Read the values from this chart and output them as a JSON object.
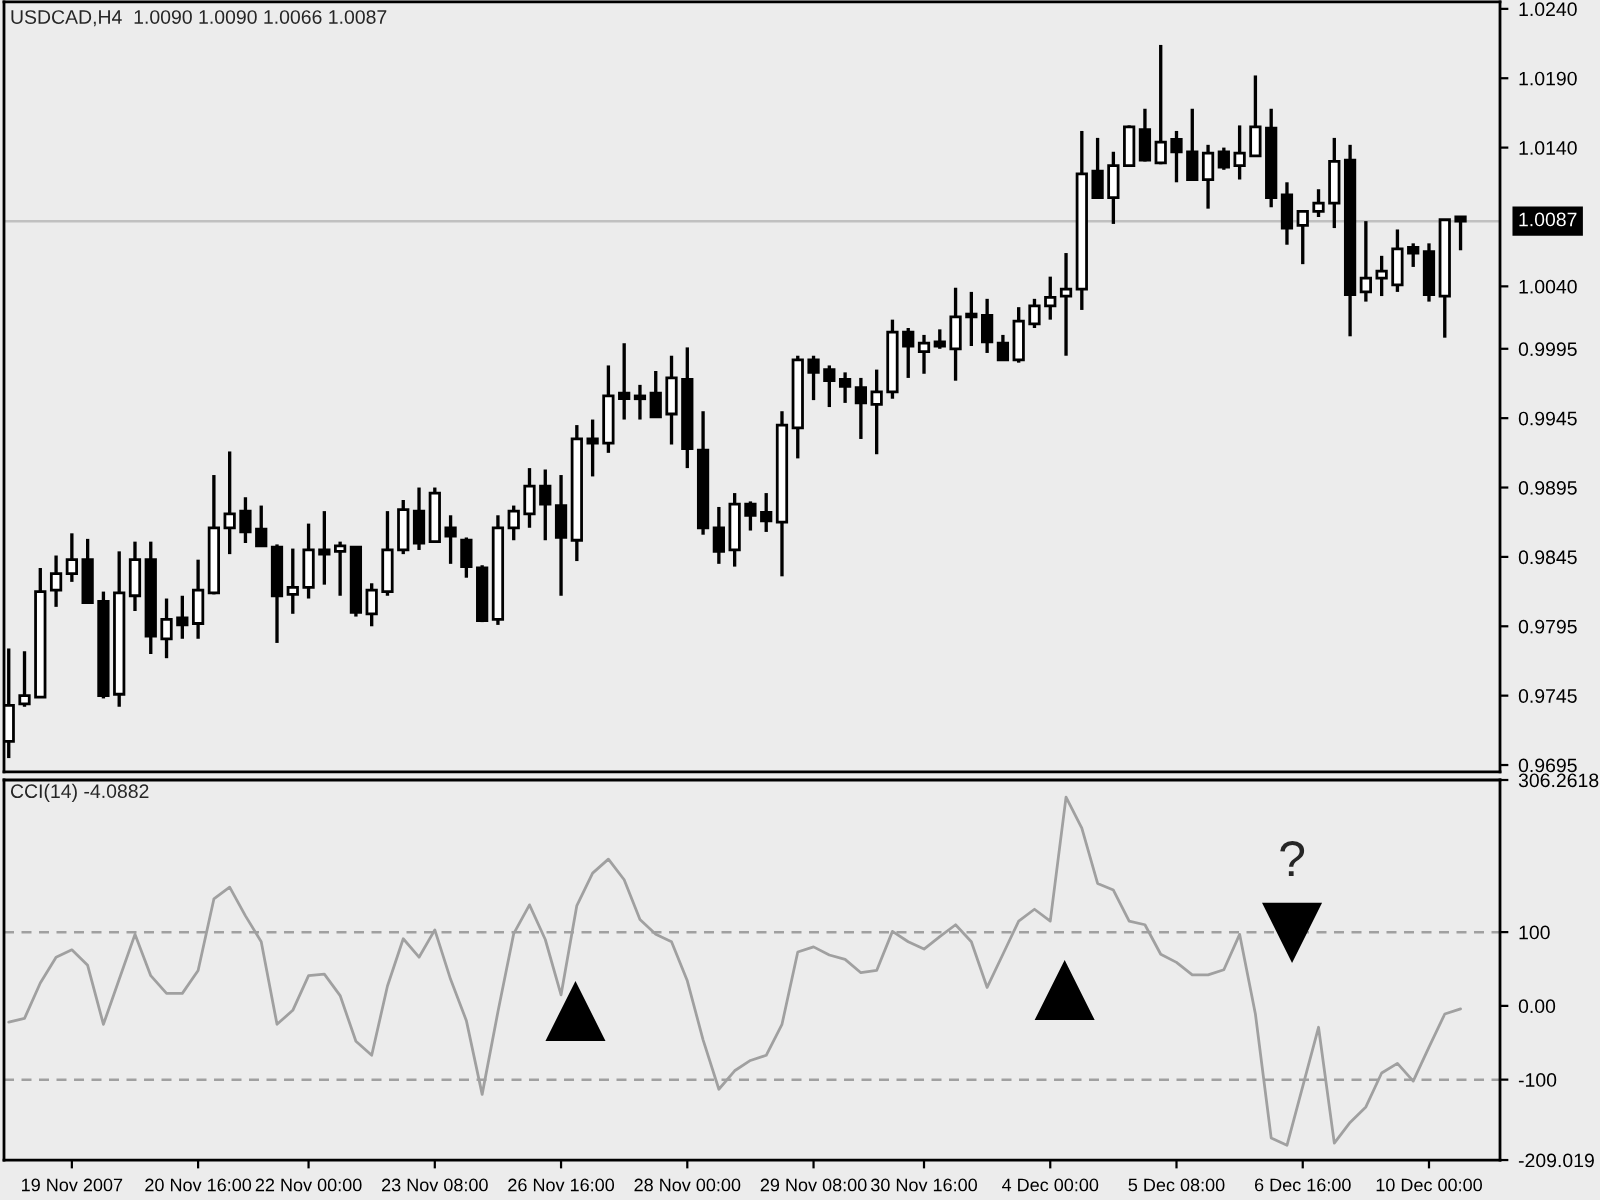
{
  "chart_data": [
    {
      "type": "candlestick",
      "title": "USDCAD,H4  1.0090 1.0090 1.0066 1.0087",
      "categories": [
        null,
        null,
        null,
        null,
        null,
        null,
        null,
        null,
        null,
        null,
        null,
        null,
        null,
        null,
        null,
        null,
        null,
        null,
        null,
        null,
        null,
        null,
        null,
        null,
        null,
        null,
        null,
        null,
        null,
        null,
        null,
        null,
        null,
        null,
        null,
        null,
        null,
        null,
        null,
        null,
        null,
        null,
        null,
        null,
        null,
        null,
        null,
        null,
        null,
        null,
        null,
        null,
        null,
        null,
        null,
        null,
        null,
        null,
        null,
        null,
        null,
        null,
        null,
        null,
        null,
        null,
        null,
        null,
        null,
        null,
        null,
        null,
        null,
        null,
        null,
        null,
        null,
        null,
        null,
        null,
        null,
        null,
        null,
        null,
        null,
        null,
        null,
        null,
        null,
        null,
        null,
        null,
        null
      ],
      "ohlc": [
        [
          0.9712,
          0.9779,
          0.97,
          0.9738
        ],
        [
          0.9739,
          0.9777,
          0.9737,
          0.9745
        ],
        [
          0.9744,
          0.9837,
          0.9744,
          0.982
        ],
        [
          0.9821,
          0.9846,
          0.9809,
          0.9833
        ],
        [
          0.9833,
          0.9862,
          0.9827,
          0.9843
        ],
        [
          0.9843,
          0.9858,
          0.9812,
          0.9812
        ],
        [
          0.9813,
          0.982,
          0.9743,
          0.9745
        ],
        [
          0.9746,
          0.9849,
          0.9737,
          0.9819
        ],
        [
          0.9817,
          0.9856,
          0.9806,
          0.9843
        ],
        [
          0.9843,
          0.9856,
          0.9775,
          0.9788
        ],
        [
          0.9786,
          0.9815,
          0.9772,
          0.98
        ],
        [
          0.9801,
          0.9817,
          0.9786,
          0.9796
        ],
        [
          0.9797,
          0.9843,
          0.9786,
          0.9821
        ],
        [
          0.9819,
          0.9904,
          0.9818,
          0.9866
        ],
        [
          0.9866,
          0.9921,
          0.9847,
          0.9876
        ],
        [
          0.9878,
          0.9888,
          0.9855,
          0.9863
        ],
        [
          0.9865,
          0.9882,
          0.9853,
          0.9853
        ],
        [
          0.9852,
          0.9854,
          0.9783,
          0.9817
        ],
        [
          0.9818,
          0.9851,
          0.9804,
          0.9823
        ],
        [
          0.9823,
          0.9869,
          0.9815,
          0.985
        ],
        [
          0.985,
          0.9878,
          0.9825,
          0.9847
        ],
        [
          0.9849,
          0.9856,
          0.9817,
          0.9853
        ],
        [
          0.9852,
          0.9852,
          0.9802,
          0.9805
        ],
        [
          0.9804,
          0.9826,
          0.9795,
          0.9821
        ],
        [
          0.982,
          0.9878,
          0.9817,
          0.985
        ],
        [
          0.985,
          0.9886,
          0.9847,
          0.9879
        ],
        [
          0.9878,
          0.9895,
          0.985,
          0.9855
        ],
        [
          0.9856,
          0.9895,
          0.9856,
          0.9891
        ],
        [
          0.9866,
          0.9875,
          0.984,
          0.986
        ],
        [
          0.9857,
          0.9859,
          0.983,
          0.9838
        ],
        [
          0.9837,
          0.9839,
          0.9798,
          0.9799
        ],
        [
          0.98,
          0.9875,
          0.9796,
          0.9866
        ],
        [
          0.9866,
          0.9882,
          0.9857,
          0.9878
        ],
        [
          0.9876,
          0.9909,
          0.9866,
          0.9896
        ],
        [
          0.9896,
          0.9908,
          0.9857,
          0.9883
        ],
        [
          0.9882,
          0.9904,
          0.9817,
          0.9859
        ],
        [
          0.9857,
          0.994,
          0.9842,
          0.993
        ],
        [
          0.993,
          0.9944,
          0.9903,
          0.9927
        ],
        [
          0.9927,
          0.9983,
          0.992,
          0.9961
        ],
        [
          0.9963,
          0.9999,
          0.9944,
          0.9959
        ],
        [
          0.9961,
          0.9969,
          0.9944,
          0.9959
        ],
        [
          0.9963,
          0.9979,
          0.9946,
          0.9946
        ],
        [
          0.9948,
          0.999,
          0.9926,
          0.9974
        ],
        [
          0.9973,
          0.9996,
          0.9909,
          0.9923
        ],
        [
          0.9922,
          0.995,
          0.9861,
          0.9866
        ],
        [
          0.9866,
          0.9881,
          0.984,
          0.9849
        ],
        [
          0.985,
          0.9891,
          0.9838,
          0.9883
        ],
        [
          0.9883,
          0.9885,
          0.9864,
          0.9875
        ],
        [
          0.9877,
          0.9891,
          0.9863,
          0.9871
        ],
        [
          0.987,
          0.995,
          0.9831,
          0.994
        ],
        [
          0.9938,
          0.999,
          0.9916,
          0.9987
        ],
        [
          0.9987,
          0.999,
          0.9958,
          0.9978
        ],
        [
          0.998,
          0.9983,
          0.9953,
          0.9972
        ],
        [
          0.9973,
          0.9978,
          0.9956,
          0.9968
        ],
        [
          0.9967,
          0.9974,
          0.993,
          0.9956
        ],
        [
          0.9955,
          0.998,
          0.9919,
          0.9964
        ],
        [
          0.9964,
          1.0016,
          0.9959,
          1.0007
        ],
        [
          1.0007,
          1.001,
          0.9974,
          0.9997
        ],
        [
          0.9993,
          1.0005,
          0.9977,
          0.9999
        ],
        [
          1.0,
          1.0009,
          0.9995,
          0.9997
        ],
        [
          0.9995,
          1.0039,
          0.9972,
          1.0018
        ],
        [
          1.0018,
          1.0036,
          0.9997,
          1.002
        ],
        [
          1.0019,
          1.0031,
          0.9992,
          1.0
        ],
        [
          0.9999,
          1.0005,
          0.9987,
          0.9987
        ],
        [
          0.9987,
          1.0025,
          0.9985,
          1.0015
        ],
        [
          1.0013,
          1.0031,
          1.001,
          1.0026
        ],
        [
          1.0026,
          1.0047,
          1.0016,
          1.0032
        ],
        [
          1.0033,
          1.0064,
          0.999,
          1.0038
        ],
        [
          1.0038,
          1.0152,
          1.0023,
          1.0121
        ],
        [
          1.0123,
          1.0147,
          1.0104,
          1.0104
        ],
        [
          1.0104,
          1.0137,
          1.0085,
          1.0127
        ],
        [
          1.0127,
          1.0156,
          1.0127,
          1.0155
        ],
        [
          1.0153,
          1.0168,
          1.013,
          1.0131
        ],
        [
          1.0129,
          1.0214,
          1.0128,
          1.0144
        ],
        [
          1.0146,
          1.0152,
          1.0115,
          1.0137
        ],
        [
          1.0137,
          1.0168,
          1.0117,
          1.0117
        ],
        [
          1.0117,
          1.0142,
          1.0096,
          1.0136
        ],
        [
          1.0137,
          1.014,
          1.0124,
          1.0126
        ],
        [
          1.0127,
          1.0156,
          1.0117,
          1.0136
        ],
        [
          1.0134,
          1.0192,
          1.0134,
          1.0155
        ],
        [
          1.0154,
          1.0168,
          1.0097,
          1.0104
        ],
        [
          1.0106,
          1.0115,
          1.007,
          1.0082
        ],
        [
          1.0084,
          1.0094,
          1.0056,
          1.0094
        ],
        [
          1.0094,
          1.011,
          1.009,
          1.01
        ],
        [
          1.01,
          1.0147,
          1.0082,
          1.013
        ],
        [
          1.0131,
          1.0142,
          1.0004,
          1.0034
        ],
        [
          1.0036,
          1.0087,
          1.0029,
          1.0046
        ],
        [
          1.0046,
          1.0062,
          1.0033,
          1.0051
        ],
        [
          1.0041,
          1.0081,
          1.0036,
          1.0067
        ],
        [
          1.0068,
          1.0071,
          1.0054,
          1.0064
        ],
        [
          1.0065,
          1.0071,
          1.0029,
          1.0034
        ],
        [
          1.0033,
          1.0088,
          1.0003,
          1.0088
        ],
        [
          1.009,
          1.009,
          1.0066,
          1.0087
        ]
      ],
      "ylim": [
        0.969,
        1.0245
      ],
      "yticks": [
        {
          "value": 1.024,
          "label": "1.0240"
        },
        {
          "value": 1.019,
          "label": "1.0190"
        },
        {
          "value": 1.014,
          "label": "1.0140"
        },
        {
          "value": 1.004,
          "label": "1.0040"
        },
        0.9995,
        0.9945,
        0.9895,
        0.9845,
        0.9795,
        0.9745,
        0.9695
      ],
      "ref_lines": [
        {
          "axis": "y",
          "value": 1.0087,
          "label": "1.0087",
          "color": "#c0c0c0",
          "line_style": "solid"
        }
      ],
      "tick_labels": "y"
    },
    {
      "type": "line",
      "title": "CCI(14) -4.0882",
      "categories": [
        null,
        null,
        null,
        null,
        "19 Nov 2007",
        null,
        null,
        null,
        null,
        null,
        null,
        null,
        "20 Nov 16:00",
        null,
        null,
        null,
        null,
        null,
        null,
        "22 Nov 00:00",
        null,
        null,
        null,
        null,
        null,
        null,
        null,
        "23 Nov 08:00",
        null,
        null,
        null,
        null,
        null,
        null,
        null,
        "26 Nov 16:00",
        null,
        null,
        null,
        null,
        null,
        null,
        null,
        "28 Nov 00:00",
        null,
        null,
        null,
        null,
        null,
        null,
        null,
        "29 Nov 08:00",
        null,
        null,
        null,
        null,
        null,
        null,
        "30 Nov 16:00",
        null,
        null,
        null,
        null,
        null,
        null,
        null,
        "4 Dec 00:00",
        null,
        null,
        null,
        null,
        null,
        null,
        null,
        "5 Dec 08:00",
        null,
        null,
        null,
        null,
        null,
        null,
        null,
        "6 Dec 16:00",
        null,
        null,
        null,
        null,
        null,
        null,
        null,
        "10 Dec 00:00",
        null,
        null
      ],
      "series": [
        {
          "color": "#a0a0a0",
          "values": [
            -22,
            -17,
            31,
            66,
            76,
            55,
            -25,
            36,
            97,
            41,
            17,
            17,
            48,
            145,
            161,
            122,
            87,
            -25,
            -6,
            41,
            43,
            14,
            -48,
            -67,
            27,
            91,
            66,
            103,
            36,
            -20,
            -120,
            -8,
            98,
            137,
            90,
            15,
            136,
            180,
            199,
            171,
            117,
            97,
            87,
            34,
            -46,
            -113,
            -88,
            -74,
            -67,
            -25,
            73,
            80,
            69,
            63,
            45,
            48,
            101,
            87,
            77,
            94,
            110,
            87,
            25,
            70,
            115,
            131,
            115,
            283,
            241,
            166,
            157,
            115,
            110,
            70,
            59,
            42,
            42,
            49,
            97,
            -11,
            -179,
            -189,
            -109,
            -29,
            -186,
            -158,
            -137,
            -91,
            -78,
            -102,
            -56,
            -11,
            -4.0882
          ]
        }
      ],
      "ylim": [
        -209.019,
        306.2618
      ],
      "yticks": [
        {
          "value": 306.2618,
          "label": "306.2618"
        },
        100,
        {
          "value": 0,
          "label": "0.00"
        },
        -100,
        {
          "value": -209.019,
          "label": "-209.019"
        }
      ],
      "ref_lines": [
        {
          "axis": "y",
          "value": 100,
          "color": "#a0a0a0",
          "line_style": "dashed"
        },
        {
          "axis": "y",
          "value": -100,
          "color": "#a0a0a0",
          "line_style": "dashed"
        }
      ],
      "annotations": [
        "?"
      ]
    }
  ]
}
